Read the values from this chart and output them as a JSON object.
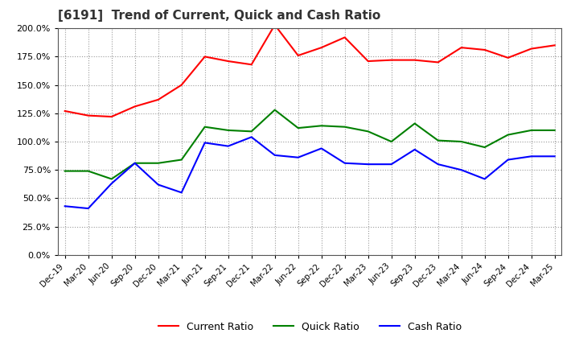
{
  "title": "[6191]  Trend of Current, Quick and Cash Ratio",
  "dates": [
    "Dec-19",
    "Mar-20",
    "Jun-20",
    "Sep-20",
    "Dec-20",
    "Mar-21",
    "Jun-21",
    "Sep-21",
    "Dec-21",
    "Mar-22",
    "Jun-22",
    "Sep-22",
    "Dec-22",
    "Mar-23",
    "Jun-23",
    "Sep-23",
    "Dec-23",
    "Mar-24",
    "Jun-24",
    "Sep-24",
    "Dec-24",
    "Mar-25"
  ],
  "current_ratio": [
    127.0,
    123.0,
    122.0,
    131.0,
    137.0,
    150.0,
    175.0,
    171.0,
    168.0,
    203.0,
    176.0,
    183.0,
    192.0,
    171.0,
    172.0,
    172.0,
    170.0,
    183.0,
    181.0,
    174.0,
    182.0,
    185.0
  ],
  "quick_ratio": [
    74.0,
    74.0,
    67.0,
    81.0,
    81.0,
    84.0,
    113.0,
    110.0,
    109.0,
    128.0,
    112.0,
    114.0,
    113.0,
    109.0,
    100.0,
    116.0,
    101.0,
    100.0,
    95.0,
    106.0,
    110.0,
    110.0
  ],
  "cash_ratio": [
    43.0,
    41.0,
    63.0,
    81.0,
    62.0,
    55.0,
    99.0,
    96.0,
    104.0,
    88.0,
    86.0,
    94.0,
    81.0,
    80.0,
    80.0,
    93.0,
    80.0,
    75.0,
    67.0,
    84.0,
    87.0,
    87.0
  ],
  "current_color": "#ff0000",
  "quick_color": "#008000",
  "cash_color": "#0000ff",
  "background_color": "#ffffff",
  "grid_color": "#999999",
  "ylim": [
    0.0,
    200.0
  ],
  "yticks": [
    0.0,
    25.0,
    50.0,
    75.0,
    100.0,
    125.0,
    150.0,
    175.0,
    200.0
  ]
}
